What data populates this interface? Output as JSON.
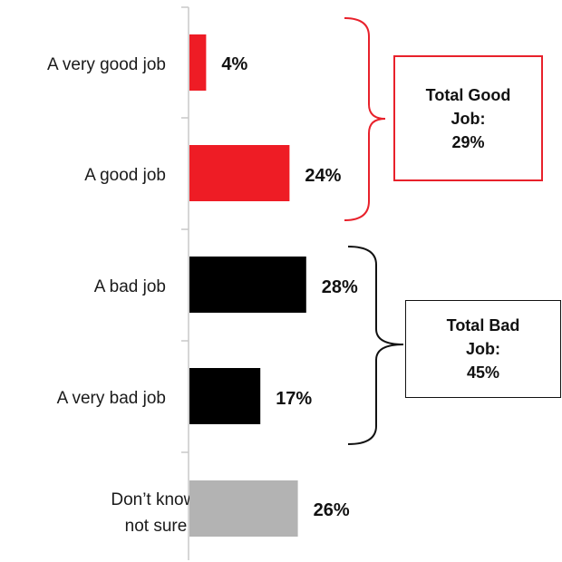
{
  "chart_data": {
    "type": "bar",
    "orientation": "horizontal",
    "categories": [
      "A very good job",
      "A good job",
      "A bad job",
      "A very bad job",
      "Don’t know/not sure"
    ],
    "values": [
      4,
      24,
      28,
      17,
      26
    ],
    "value_labels": [
      "4%",
      "24%",
      "28%",
      "17%",
      "26%"
    ],
    "colors": [
      "#ee1c25",
      "#ee1c25",
      "#000000",
      "#000000",
      "#b3b3b3"
    ],
    "title": "",
    "xlabel": "",
    "ylabel": "",
    "xlim": [
      0,
      100
    ],
    "grid": false,
    "annotations": [
      {
        "lines": [
          "Total Good",
          "Job:",
          "29%"
        ],
        "color": "#e8212b",
        "covers": [
          "A very good job",
          "A good job"
        ]
      },
      {
        "lines": [
          "Total Bad",
          "Job:",
          "45%"
        ],
        "color": "#111111",
        "covers": [
          "A bad job",
          "A very bad job"
        ]
      }
    ]
  }
}
